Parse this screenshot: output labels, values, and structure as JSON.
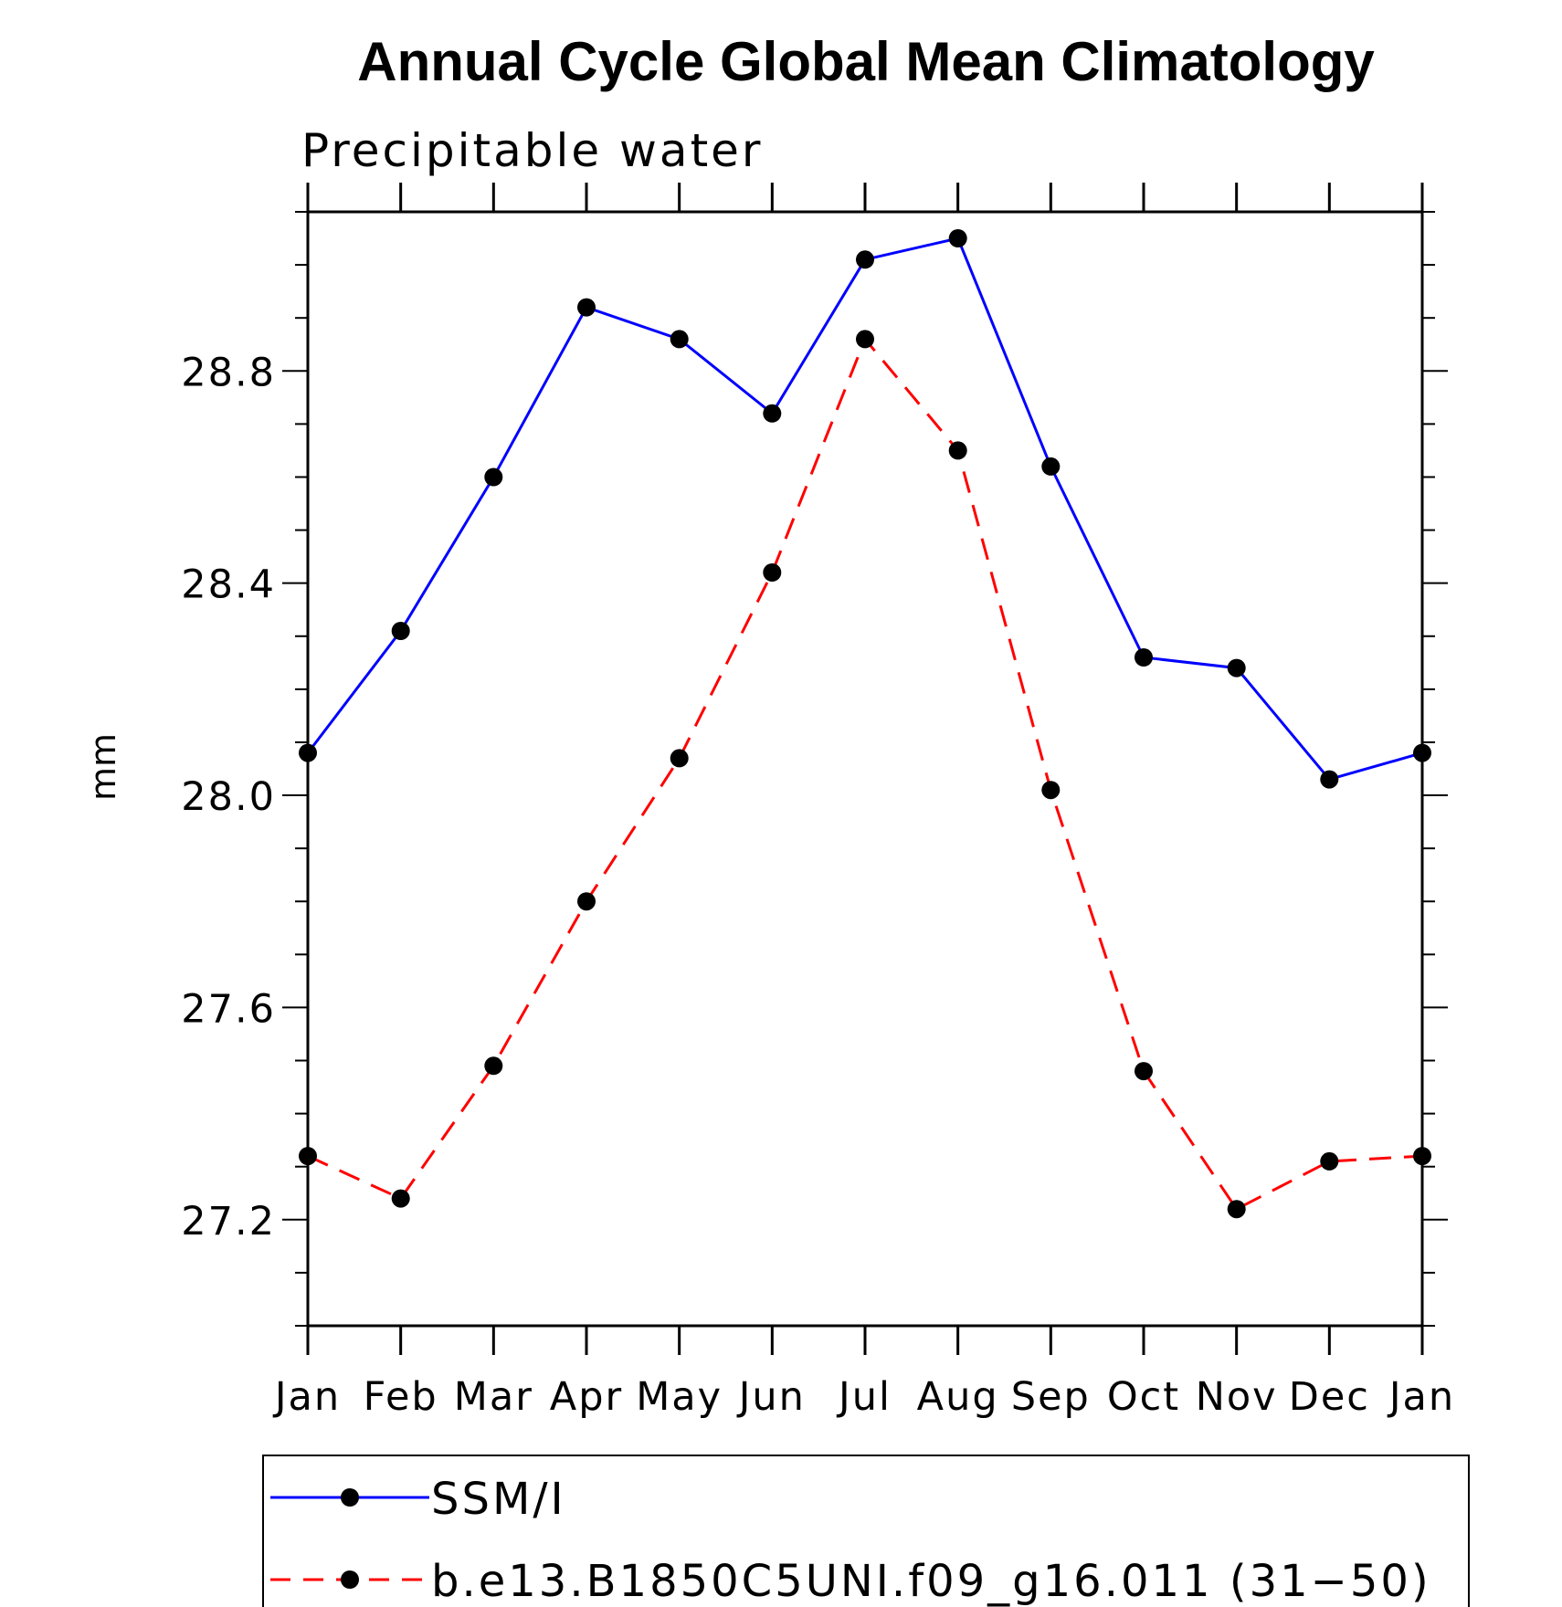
{
  "chart_data": {
    "type": "line",
    "title": "Annual Cycle Global Mean Climatology",
    "subtitle": "Precipitable water",
    "xlabel": "",
    "ylabel": "mm",
    "categories": [
      "Jan",
      "Feb",
      "Mar",
      "Apr",
      "May",
      "Jun",
      "Jul",
      "Aug",
      "Sep",
      "Oct",
      "Nov",
      "Dec",
      "Jan"
    ],
    "ylim": [
      27.0,
      29.1
    ],
    "yticks": [
      "27.2",
      "27.6",
      "28.0",
      "28.4",
      "28.8"
    ],
    "ytick_values": [
      27.2,
      27.6,
      28.0,
      28.4,
      28.8
    ],
    "legend_position": "bottom",
    "grid": false,
    "series": [
      {
        "name": "SSM/I",
        "color": "#0000ff",
        "dash": "solid",
        "marker": "filled-circle",
        "values": [
          28.08,
          28.31,
          28.6,
          28.92,
          28.86,
          28.72,
          29.01,
          29.05,
          28.62,
          28.26,
          28.24,
          28.03,
          28.08
        ]
      },
      {
        "name": "b.e13.B1850C5UNI.f09_g16.011 (31−50)",
        "color": "#ff0000",
        "dash": "dashed",
        "marker": "filled-circle",
        "values": [
          27.32,
          27.24,
          27.49,
          27.8,
          28.07,
          28.42,
          28.86,
          28.65,
          28.01,
          27.48,
          27.22,
          27.31,
          27.32
        ]
      }
    ]
  }
}
